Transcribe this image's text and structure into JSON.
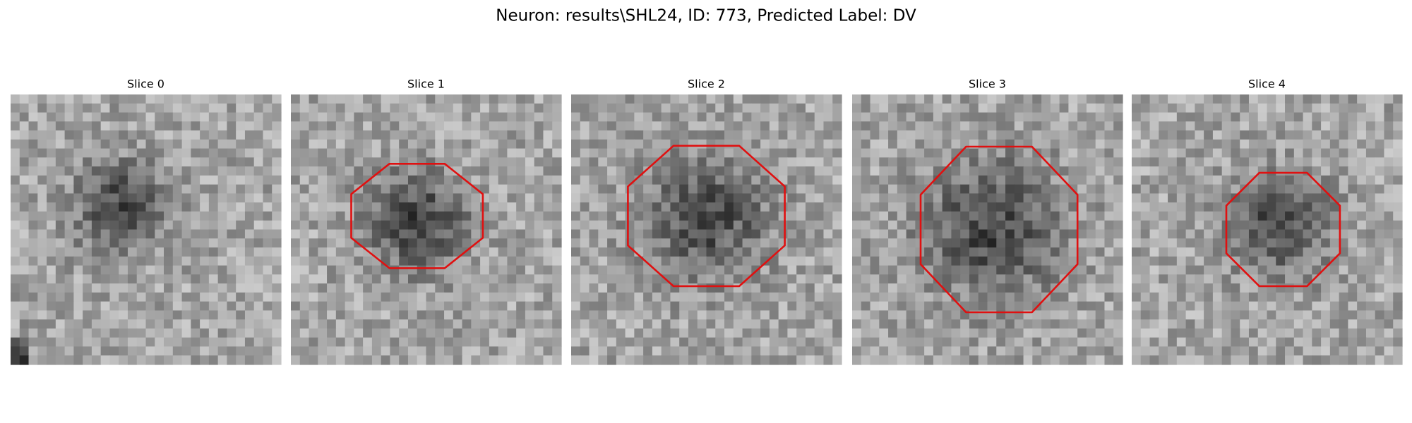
{
  "title": "Neuron: results\\SHL24, ID: 773, Predicted Label: DV",
  "panels": [
    {
      "title": "Slice 0"
    },
    {
      "title": "Slice 1"
    },
    {
      "title": "Slice 2"
    },
    {
      "title": "Slice 3"
    },
    {
      "title": "Slice 4"
    }
  ]
}
